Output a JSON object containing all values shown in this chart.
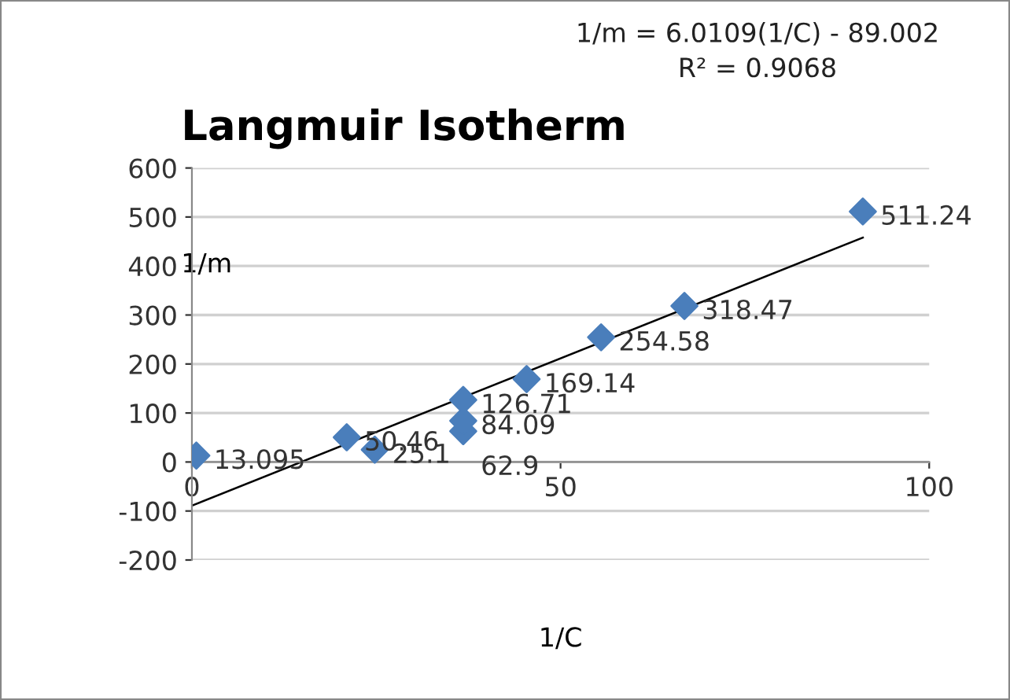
{
  "chart_data": {
    "type": "scatter",
    "title": "Langmuir Isotherm",
    "xlabel": "1/C",
    "ylabel": "1/m",
    "annotations": [
      "1/m = 6.0109(1/C) - 89.002",
      "R² = 0.9068"
    ],
    "series": [
      {
        "type": "scatter",
        "color": "#4a7ebb",
        "marker": "diamond",
        "data_labels": true,
        "x": [
          0.6,
          21,
          24.8,
          36.8,
          36.8,
          36.8,
          45.4,
          55.5,
          66.8,
          91
        ],
        "values": [
          13.095,
          50.46,
          25.1,
          62.9,
          84.09,
          126.71,
          169.14,
          254.58,
          318.47,
          511.24
        ]
      },
      {
        "type": "line",
        "color": "#000000",
        "marker": "none",
        "x": [
          0,
          91
        ],
        "values": [
          -89.0,
          458.0
        ]
      }
    ],
    "xlim": [
      0,
      100
    ],
    "xticks": [
      0,
      50,
      100
    ],
    "ylim": [
      -200,
      600
    ],
    "yticks": [
      -200,
      -100,
      0,
      100,
      200,
      300,
      400,
      500,
      600
    ],
    "grid": "y",
    "legend": false
  }
}
